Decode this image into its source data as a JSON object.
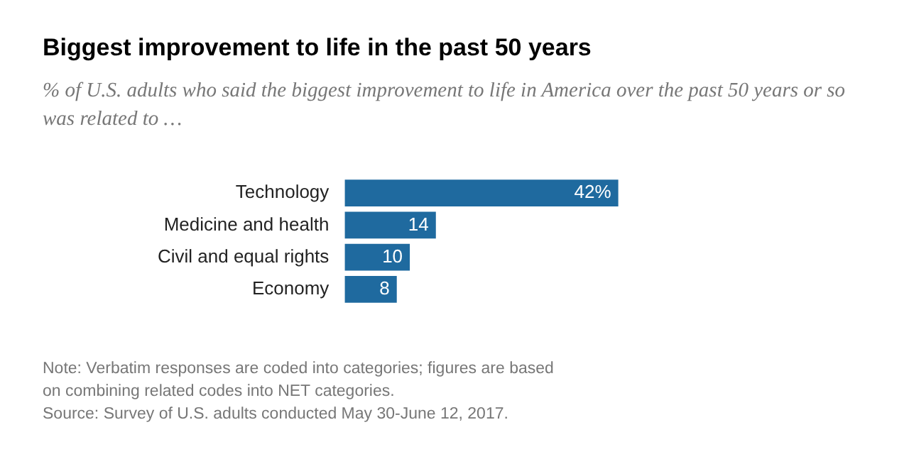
{
  "chart_data": {
    "type": "bar",
    "orientation": "horizontal",
    "title": "Biggest improvement to life in the past 50 years",
    "subtitle": "% of U.S. adults who said the biggest improvement to life in America over the past 50 years or so was related to …",
    "categories": [
      "Technology",
      "Medicine and health",
      "Civil and equal rights",
      "Economy"
    ],
    "values": [
      42,
      14,
      10,
      8
    ],
    "color": "#1f6a9f",
    "value_labels": [
      "42%",
      "14",
      "10",
      "8"
    ],
    "annotations": [
      "Note: Verbatim responses are coded into categories; figures are based on combining related codes into NET categories.",
      "Source: Survey of U.S. adults conducted May 30-June 12, 2017."
    ]
  }
}
